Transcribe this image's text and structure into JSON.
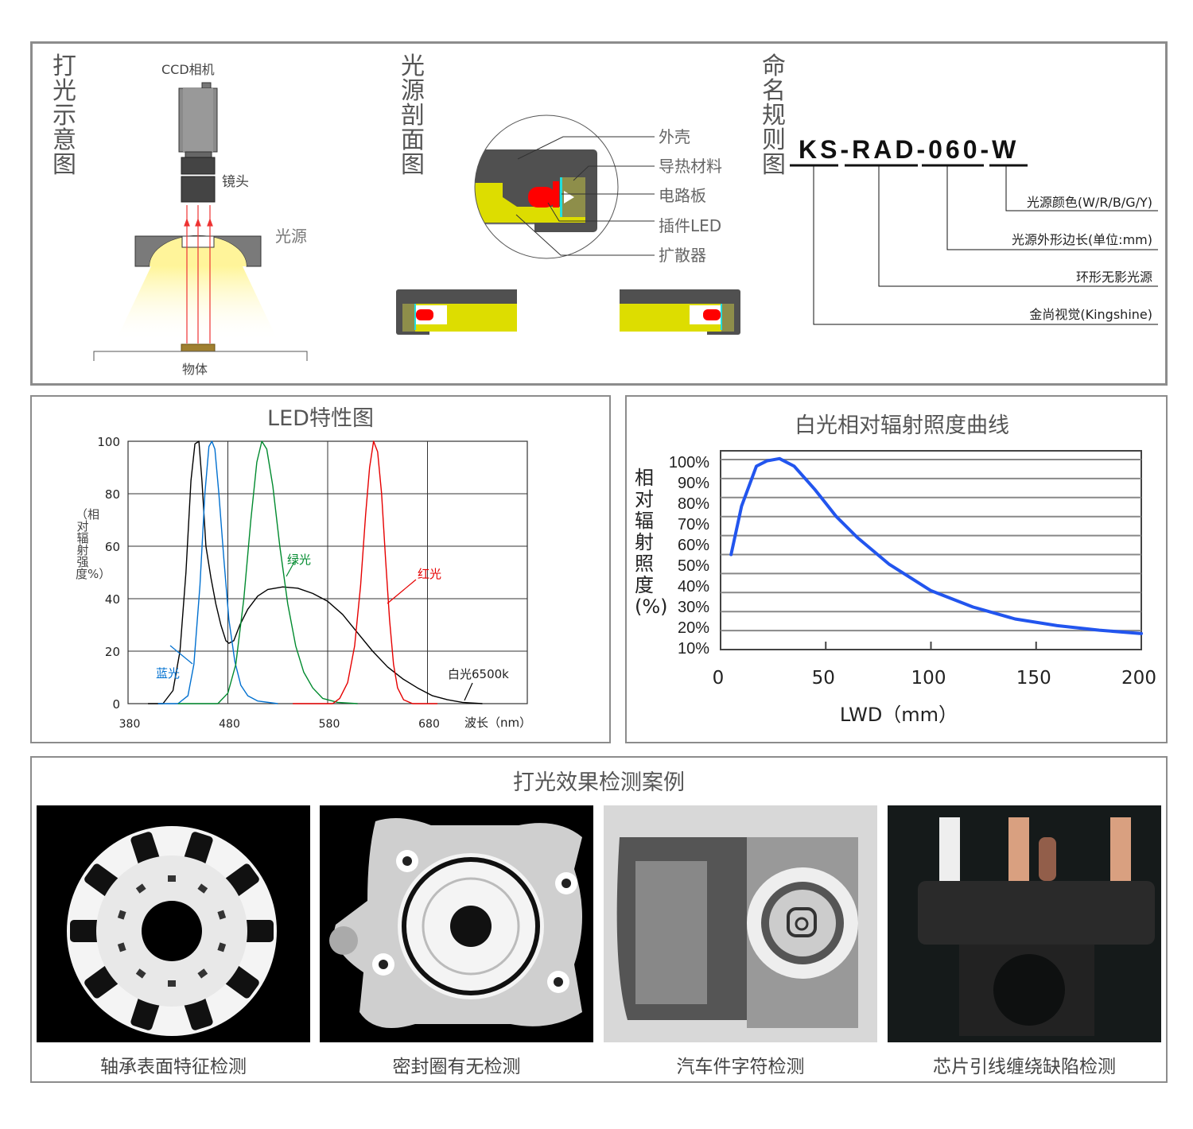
{
  "lighting_diagram": {
    "title": "打光示意图",
    "camera_label": "CCD相机",
    "lens_label": "镜头",
    "light_label": "光源",
    "object_label": "物体"
  },
  "section_diagram": {
    "title": "光源剖面图",
    "parts": [
      "外壳",
      "导热材料",
      "电路板",
      "插件LED",
      "扩散器"
    ],
    "colors": {
      "housing": "#505050",
      "diffuser": "#dddd00",
      "heat": "#8e8e4a",
      "led": "#ff0000",
      "pcb": "#22dddd"
    }
  },
  "naming": {
    "title": "命名规则图",
    "segments": [
      "KS",
      "RAD",
      "060",
      "W"
    ],
    "separator": "-",
    "meanings": [
      "光源颜色(W/R/B/G/Y)",
      "光源外形边长(单位:mm)",
      "环形无影光源",
      "金尚视觉(Kingshine)"
    ]
  },
  "chart_data": [
    {
      "type": "line",
      "title": "LED特性图",
      "xlabel": "波长（nm）",
      "ylabel": "（相对辐射强度%）",
      "xlim": [
        380,
        780
      ],
      "ylim": [
        0,
        100
      ],
      "x_ticks": [
        "380",
        "480",
        "580",
        "680"
      ],
      "y_ticks": [
        "0",
        "20",
        "40",
        "60",
        "80",
        "100"
      ],
      "grid": true,
      "series": [
        {
          "name": "白光6500k",
          "color": "#000000",
          "points": [
            [
              400,
              0
            ],
            [
              415,
              0
            ],
            [
              425,
              5
            ],
            [
              432,
              20
            ],
            [
              438,
              50
            ],
            [
              443,
              85
            ],
            [
              447,
              99
            ],
            [
              451,
              100
            ],
            [
              454,
              85
            ],
            [
              458,
              60
            ],
            [
              463,
              48
            ],
            [
              468,
              38
            ],
            [
              473,
              30
            ],
            [
              478,
              24
            ],
            [
              481,
              23
            ],
            [
              486,
              24
            ],
            [
              492,
              30
            ],
            [
              500,
              36
            ],
            [
              510,
              41
            ],
            [
              520,
              43.5
            ],
            [
              535,
              44.5
            ],
            [
              550,
              44
            ],
            [
              565,
              42
            ],
            [
              580,
              39
            ],
            [
              595,
              34
            ],
            [
              610,
              27
            ],
            [
              625,
              20
            ],
            [
              640,
              14
            ],
            [
              655,
              9.5
            ],
            [
              670,
              6
            ],
            [
              685,
              3
            ],
            [
              700,
              1.5
            ],
            [
              715,
              0.5
            ],
            [
              735,
              0
            ]
          ]
        },
        {
          "name": "蓝光",
          "color": "#0070d0",
          "points": [
            [
              410,
              0
            ],
            [
              430,
              0
            ],
            [
              440,
              3
            ],
            [
              446,
              15
            ],
            [
              452,
              45
            ],
            [
              457,
              80
            ],
            [
              461,
              98
            ],
            [
              464,
              100
            ],
            [
              467,
              97
            ],
            [
              471,
              80
            ],
            [
              476,
              55
            ],
            [
              481,
              32
            ],
            [
              487,
              16
            ],
            [
              493,
              7
            ],
            [
              500,
              3
            ],
            [
              510,
              1
            ],
            [
              530,
              0
            ]
          ]
        },
        {
          "name": "绿光",
          "color": "#008a2e",
          "points": [
            [
              430,
              0
            ],
            [
              470,
              0
            ],
            [
              480,
              4
            ],
            [
              488,
              15
            ],
            [
              496,
              40
            ],
            [
              503,
              70
            ],
            [
              509,
              92
            ],
            [
              514,
              100
            ],
            [
              519,
              97
            ],
            [
              525,
              83
            ],
            [
              532,
              60
            ],
            [
              540,
              38
            ],
            [
              548,
              22
            ],
            [
              556,
              12
            ],
            [
              565,
              6
            ],
            [
              575,
              2
            ],
            [
              590,
              0.5
            ],
            [
              610,
              0
            ]
          ]
        },
        {
          "name": "红光",
          "color": "#e60000",
          "points": [
            [
              545,
              0
            ],
            [
              585,
              0
            ],
            [
              592,
              2
            ],
            [
              600,
              8
            ],
            [
              607,
              22
            ],
            [
              613,
              45
            ],
            [
              618,
              72
            ],
            [
              622,
              90
            ],
            [
              626,
              100
            ],
            [
              630,
              96
            ],
            [
              634,
              80
            ],
            [
              638,
              55
            ],
            [
              642,
              32
            ],
            [
              646,
              15
            ],
            [
              650,
              6
            ],
            [
              656,
              1.5
            ],
            [
              665,
              0
            ],
            [
              690,
              0
            ]
          ]
        }
      ]
    },
    {
      "type": "line",
      "title": "白光相对辐射照度曲线",
      "xlabel": "LWD（mm）",
      "ylabel": "相对辐射照度(%)",
      "xlim": [
        0,
        200
      ],
      "ylim": [
        0,
        100
      ],
      "x_ticks": [
        "0",
        "50",
        "100",
        "150",
        "200"
      ],
      "y_ticks": [
        "100%",
        "90%",
        "80%",
        "70%",
        "60%",
        "50%",
        "40%",
        "30%",
        "20%",
        "10%"
      ],
      "grid": true,
      "series": [
        {
          "color": "#2255ee",
          "points": [
            [
              5,
              50
            ],
            [
              10,
              75.5
            ],
            [
              17,
              96.5
            ],
            [
              22,
              99.3
            ],
            [
              28,
              100.5
            ],
            [
              35,
              96.5
            ],
            [
              45,
              84
            ],
            [
              55,
              70
            ],
            [
              65,
              59
            ],
            [
              80,
              45
            ],
            [
              100,
              31
            ],
            [
              120,
              22.4
            ],
            [
              140,
              16.1
            ],
            [
              160,
              12.6
            ],
            [
              180,
              10.2
            ],
            [
              200,
              8.4
            ]
          ]
        }
      ]
    }
  ],
  "cases": {
    "title": "打光效果检测案例",
    "items": [
      "轴承表面特征检测",
      "密封圈有无检测",
      "汽车件字符检测",
      "芯片引线缠绕缺陷检测"
    ]
  }
}
